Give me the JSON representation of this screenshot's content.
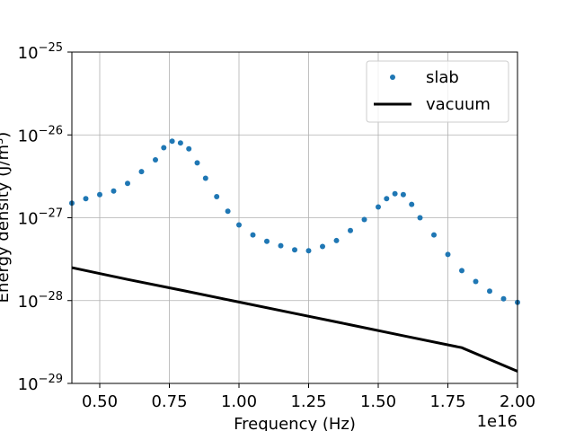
{
  "chart_data": {
    "type": "scatter",
    "title": "",
    "xlabel": "Frequency (Hz)",
    "ylabel": "Energy density (J/m³)",
    "x_offset_label": "1e16",
    "xscale": "linear",
    "yscale": "log",
    "xlim": [
      0.4,
      2.0
    ],
    "ylim_exp": [
      -29,
      -25
    ],
    "x_ticks": [
      "0.50",
      "0.75",
      "1.00",
      "1.25",
      "1.50",
      "1.75",
      "2.00"
    ],
    "y_ticks": [
      {
        "base": "10",
        "exp": "−25"
      },
      {
        "base": "10",
        "exp": "−26"
      },
      {
        "base": "10",
        "exp": "−27"
      },
      {
        "base": "10",
        "exp": "−28"
      },
      {
        "base": "10",
        "exp": "−29"
      }
    ],
    "grid": true,
    "legend_position": "top-right",
    "series": [
      {
        "name": "slab",
        "style": "markers",
        "color": "#1f77b4",
        "x": [
          0.4,
          0.45,
          0.5,
          0.55,
          0.6,
          0.65,
          0.7,
          0.73,
          0.76,
          0.79,
          0.82,
          0.85,
          0.88,
          0.92,
          0.96,
          1.0,
          1.05,
          1.1,
          1.15,
          1.2,
          1.25,
          1.3,
          1.35,
          1.4,
          1.45,
          1.5,
          1.53,
          1.56,
          1.59,
          1.62,
          1.65,
          1.7,
          1.75,
          1.8,
          1.85,
          1.9,
          1.95,
          2.0
        ],
        "y": [
          1.5e-27,
          1.7e-27,
          1.9e-27,
          2.1e-27,
          2.6e-27,
          3.6e-27,
          5e-27,
          7e-27,
          8.4e-27,
          8e-27,
          6.8e-27,
          4.6e-27,
          3e-27,
          1.8e-27,
          1.2e-27,
          8.2e-28,
          6.2e-28,
          5.2e-28,
          4.6e-28,
          4.1e-28,
          4e-28,
          4.5e-28,
          5.3e-28,
          7e-28,
          9.5e-28,
          1.35e-27,
          1.7e-27,
          1.95e-27,
          1.9e-27,
          1.45e-27,
          1e-27,
          6.2e-28,
          3.6e-28,
          2.3e-28,
          1.7e-28,
          1.3e-28,
          1.05e-28,
          9.5e-29
        ]
      },
      {
        "name": "vacuum",
        "style": "line",
        "color": "#000000",
        "x": [
          0.4,
          0.6,
          0.8,
          1.0,
          1.2,
          1.4,
          1.6,
          1.8,
          2.0
        ],
        "y": [
          2.5e-28,
          1.8e-28,
          1.32e-28,
          9.6e-29,
          7e-29,
          5.1e-29,
          3.7e-29,
          2.7e-29,
          1.4e-29
        ]
      }
    ]
  }
}
